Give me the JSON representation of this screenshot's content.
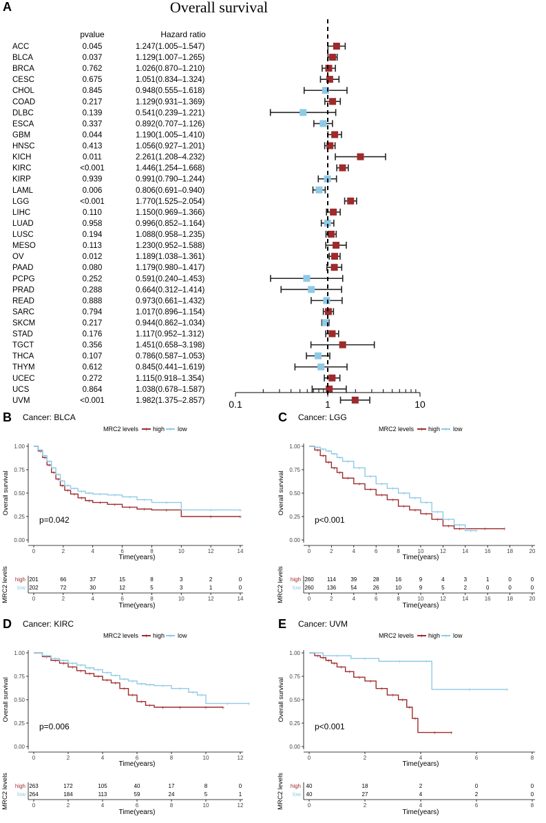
{
  "colors": {
    "high": "#9e2a2b",
    "low": "#8ecae6",
    "axis": "#000000",
    "grid": "#000000"
  },
  "chart_data": [
    {
      "panel": "A",
      "type": "forest",
      "title": "Overall survival",
      "col_pvalue": "pvalue",
      "col_hr": "Hazard ratio",
      "xscale": "log",
      "xticks": [
        0.1,
        1,
        10
      ],
      "xtick_labels": [
        "0.1",
        "1",
        "10"
      ],
      "reference": 1,
      "rows": [
        {
          "name": "ACC",
          "p": "0.045",
          "hr_text": "1.247(1.005–1.547)",
          "hr": 1.247,
          "lo": 1.005,
          "hi": 1.547
        },
        {
          "name": "BLCA",
          "p": "0.037",
          "hr_text": "1.129(1.007–1.265)",
          "hr": 1.129,
          "lo": 1.007,
          "hi": 1.265
        },
        {
          "name": "BRCA",
          "p": "0.762",
          "hr_text": "1.026(0.870–1.210)",
          "hr": 1.026,
          "lo": 0.87,
          "hi": 1.21
        },
        {
          "name": "CESC",
          "p": "0.675",
          "hr_text": "1.051(0.834–1.324)",
          "hr": 1.051,
          "lo": 0.834,
          "hi": 1.324
        },
        {
          "name": "CHOL",
          "p": "0.845",
          "hr_text": "0.948(0.555–1.618)",
          "hr": 0.948,
          "lo": 0.555,
          "hi": 1.618
        },
        {
          "name": "COAD",
          "p": "0.217",
          "hr_text": "1.129(0.931–1.369)",
          "hr": 1.129,
          "lo": 0.931,
          "hi": 1.369
        },
        {
          "name": "DLBC",
          "p": "0.139",
          "hr_text": "0.541(0.239–1.221)",
          "hr": 0.541,
          "lo": 0.239,
          "hi": 1.221
        },
        {
          "name": "ESCA",
          "p": "0.337",
          "hr_text": "0.892(0.707–1.126)",
          "hr": 0.892,
          "lo": 0.707,
          "hi": 1.126
        },
        {
          "name": "GBM",
          "p": "0.044",
          "hr_text": "1.190(1.005–1.410)",
          "hr": 1.19,
          "lo": 1.005,
          "hi": 1.41
        },
        {
          "name": "HNSC",
          "p": "0.413",
          "hr_text": "1.056(0.927–1.201)",
          "hr": 1.056,
          "lo": 0.927,
          "hi": 1.201
        },
        {
          "name": "KICH",
          "p": "0.011",
          "hr_text": "2.261(1.208–4.232)",
          "hr": 2.261,
          "lo": 1.208,
          "hi": 4.232
        },
        {
          "name": "KIRC",
          "p": "<0.001",
          "hr_text": "1.446(1.254–1.668)",
          "hr": 1.446,
          "lo": 1.254,
          "hi": 1.668
        },
        {
          "name": "KIRP",
          "p": "0.939",
          "hr_text": "0.991(0.790–1.244)",
          "hr": 0.991,
          "lo": 0.79,
          "hi": 1.244
        },
        {
          "name": "LAML",
          "p": "0.006",
          "hr_text": "0.806(0.691–0.940)",
          "hr": 0.806,
          "lo": 0.691,
          "hi": 0.94
        },
        {
          "name": "LGG",
          "p": "<0.001",
          "hr_text": "1.770(1.525–2.054)",
          "hr": 1.77,
          "lo": 1.525,
          "hi": 2.054
        },
        {
          "name": "LIHC",
          "p": "0.110",
          "hr_text": "1.150(0.969–1.366)",
          "hr": 1.15,
          "lo": 0.969,
          "hi": 1.366
        },
        {
          "name": "LUAD",
          "p": "0.958",
          "hr_text": "0.996(0.852–1.164)",
          "hr": 0.996,
          "lo": 0.852,
          "hi": 1.164
        },
        {
          "name": "LUSC",
          "p": "0.194",
          "hr_text": "1.088(0.958–1.235)",
          "hr": 1.088,
          "lo": 0.958,
          "hi": 1.235
        },
        {
          "name": "MESO",
          "p": "0.113",
          "hr_text": "1.230(0.952–1.588)",
          "hr": 1.23,
          "lo": 0.952,
          "hi": 1.588
        },
        {
          "name": "OV",
          "p": "0.012",
          "hr_text": "1.189(1.038–1.361)",
          "hr": 1.189,
          "lo": 1.038,
          "hi": 1.361
        },
        {
          "name": "PAAD",
          "p": "0.080",
          "hr_text": "1.179(0.980–1.417)",
          "hr": 1.179,
          "lo": 0.98,
          "hi": 1.417
        },
        {
          "name": "PCPG",
          "p": "0.252",
          "hr_text": "0.591(0.240–1.453)",
          "hr": 0.591,
          "lo": 0.24,
          "hi": 1.453
        },
        {
          "name": "PRAD",
          "p": "0.288",
          "hr_text": "0.664(0.312–1.414)",
          "hr": 0.664,
          "lo": 0.312,
          "hi": 1.414
        },
        {
          "name": "READ",
          "p": "0.888",
          "hr_text": "0.973(0.661–1.432)",
          "hr": 0.973,
          "lo": 0.661,
          "hi": 1.432
        },
        {
          "name": "SARC",
          "p": "0.794",
          "hr_text": "1.017(0.896–1.154)",
          "hr": 1.017,
          "lo": 0.896,
          "hi": 1.154
        },
        {
          "name": "SKCM",
          "p": "0.217",
          "hr_text": "0.944(0.862–1.034)",
          "hr": 0.944,
          "lo": 0.862,
          "hi": 1.034
        },
        {
          "name": "STAD",
          "p": "0.176",
          "hr_text": "1.117(0.952–1.312)",
          "hr": 1.117,
          "lo": 0.952,
          "hi": 1.312
        },
        {
          "name": "TGCT",
          "p": "0.356",
          "hr_text": "1.451(0.658–3.198)",
          "hr": 1.451,
          "lo": 0.658,
          "hi": 3.198
        },
        {
          "name": "THCA",
          "p": "0.107",
          "hr_text": "0.786(0.587–1.053)",
          "hr": 0.786,
          "lo": 0.587,
          "hi": 1.053
        },
        {
          "name": "THYM",
          "p": "0.612",
          "hr_text": "0.845(0.441–1.619)",
          "hr": 0.845,
          "lo": 0.441,
          "hi": 1.619
        },
        {
          "name": "UCEC",
          "p": "0.272",
          "hr_text": "1.115(0.918–1.354)",
          "hr": 1.115,
          "lo": 0.918,
          "hi": 1.354
        },
        {
          "name": "UCS",
          "p": "0.864",
          "hr_text": "1.038(0.678–1.587)",
          "hr": 1.038,
          "lo": 0.678,
          "hi": 1.587
        },
        {
          "name": "UVM",
          "p": "<0.001",
          "hr_text": "1.982(1.375–2.857)",
          "hr": 1.982,
          "lo": 1.375,
          "hi": 2.857
        }
      ]
    },
    {
      "panel": "B",
      "type": "line",
      "subtype": "kaplan-meier",
      "title": "Cancer: BLCA",
      "legend_title": "MRC2 levels",
      "legend_labels": [
        "high",
        "low"
      ],
      "xlabel": "Time(years)",
      "ylabel": "Overall survival",
      "xlim": [
        0,
        14
      ],
      "xticks": [
        0,
        2,
        4,
        6,
        8,
        10,
        12,
        14
      ],
      "ylim": [
        0,
        1
      ],
      "yticks": [
        "0.00",
        "0.25",
        "0.50",
        "0.75",
        "1.00"
      ],
      "pvalue": "p=0.042",
      "series": [
        {
          "name": "high",
          "x": [
            0,
            0.3,
            0.6,
            0.9,
            1.2,
            1.5,
            1.8,
            2.1,
            2.5,
            3,
            3.5,
            4,
            5,
            6,
            7,
            8,
            10,
            14
          ],
          "y": [
            1,
            0.95,
            0.88,
            0.8,
            0.72,
            0.65,
            0.58,
            0.53,
            0.49,
            0.45,
            0.42,
            0.4,
            0.38,
            0.35,
            0.33,
            0.32,
            0.25,
            0.25
          ]
        },
        {
          "name": "low",
          "x": [
            0,
            0.3,
            0.6,
            0.9,
            1.2,
            1.5,
            1.8,
            2.1,
            2.5,
            3,
            3.5,
            4,
            5,
            6,
            7,
            8,
            10,
            14
          ],
          "y": [
            1,
            0.96,
            0.9,
            0.84,
            0.77,
            0.7,
            0.63,
            0.58,
            0.55,
            0.52,
            0.5,
            0.49,
            0.48,
            0.46,
            0.43,
            0.4,
            0.32,
            0.32
          ]
        }
      ],
      "risk_table": {
        "ylabel": "MRC2 levels",
        "rows": [
          {
            "name": "high",
            "counts": [
              "201",
              "66",
              "37",
              "15",
              "8",
              "3",
              "2",
              "0"
            ]
          },
          {
            "name": "low",
            "counts": [
              "202",
              "72",
              "30",
              "12",
              "5",
              "3",
              "1",
              "0"
            ]
          }
        ],
        "xticks": [
          0,
          2,
          4,
          6,
          8,
          10,
          12,
          14
        ]
      }
    },
    {
      "panel": "C",
      "type": "line",
      "subtype": "kaplan-meier",
      "title": "Cancer: LGG",
      "legend_title": "MRC2 levels",
      "legend_labels": [
        "high",
        "low"
      ],
      "xlabel": "Time(years)",
      "ylabel": "Overall survival",
      "xlim": [
        0,
        20
      ],
      "xticks": [
        0,
        2,
        4,
        6,
        8,
        10,
        12,
        14,
        16,
        18,
        20
      ],
      "ylim": [
        0,
        1
      ],
      "yticks": [
        "0.00",
        "0.25",
        "0.50",
        "0.75",
        "1.00"
      ],
      "pvalue": "p<0.001",
      "series": [
        {
          "name": "high",
          "x": [
            0,
            0.5,
            1,
            1.5,
            2,
            2.5,
            3,
            4,
            5,
            6,
            7,
            8,
            9,
            10,
            11,
            12,
            13,
            14,
            17.5
          ],
          "y": [
            1,
            0.96,
            0.9,
            0.83,
            0.77,
            0.72,
            0.66,
            0.6,
            0.54,
            0.48,
            0.43,
            0.36,
            0.32,
            0.28,
            0.22,
            0.15,
            0.12,
            0.12,
            0.12
          ]
        },
        {
          "name": "low",
          "x": [
            0,
            0.5,
            1,
            1.5,
            2,
            2.5,
            3,
            4,
            5,
            6,
            7,
            8,
            9,
            10,
            11,
            12,
            13,
            14,
            15
          ],
          "y": [
            1,
            0.99,
            0.97,
            0.95,
            0.92,
            0.88,
            0.84,
            0.77,
            0.68,
            0.6,
            0.55,
            0.5,
            0.45,
            0.4,
            0.3,
            0.22,
            0.16,
            0.1,
            0.1
          ]
        }
      ],
      "risk_table": {
        "ylabel": "MRC2 levels",
        "rows": [
          {
            "name": "high",
            "counts": [
              "260",
              "114",
              "39",
              "28",
              "16",
              "9",
              "4",
              "3",
              "1",
              "0",
              "0"
            ]
          },
          {
            "name": "low",
            "counts": [
              "260",
              "136",
              "54",
              "26",
              "10",
              "9",
              "5",
              "2",
              "0",
              "0",
              "0"
            ]
          }
        ],
        "xticks": [
          0,
          2,
          4,
          6,
          8,
          10,
          12,
          14,
          16,
          18,
          20
        ]
      }
    },
    {
      "panel": "D",
      "type": "line",
      "subtype": "kaplan-meier",
      "title": "Cancer: KIRC",
      "legend_title": "MRC2 levels",
      "legend_labels": [
        "high",
        "low"
      ],
      "xlabel": "Time(years)",
      "ylabel": "Overall survival",
      "xlim": [
        0,
        12
      ],
      "xticks": [
        0,
        2,
        4,
        6,
        8,
        10,
        12
      ],
      "ylim": [
        0,
        1
      ],
      "yticks": [
        "0.00",
        "0.25",
        "0.50",
        "0.75",
        "1.00"
      ],
      "pvalue": "p=0.006",
      "series": [
        {
          "name": "high",
          "x": [
            0,
            0.5,
            1,
            1.5,
            2,
            2.5,
            3,
            3.5,
            4,
            4.5,
            5,
            5.5,
            6,
            6.5,
            7,
            8,
            9,
            11
          ],
          "y": [
            1,
            0.96,
            0.92,
            0.89,
            0.85,
            0.81,
            0.78,
            0.75,
            0.71,
            0.68,
            0.62,
            0.55,
            0.48,
            0.44,
            0.42,
            0.42,
            0.42,
            0.42
          ]
        },
        {
          "name": "low",
          "x": [
            0,
            0.5,
            1,
            1.5,
            2,
            2.5,
            3,
            3.5,
            4,
            4.5,
            5,
            5.5,
            6,
            6.5,
            7,
            8,
            9,
            9.5,
            10,
            12.5
          ],
          "y": [
            1,
            0.97,
            0.94,
            0.92,
            0.89,
            0.87,
            0.84,
            0.82,
            0.79,
            0.76,
            0.72,
            0.7,
            0.67,
            0.66,
            0.65,
            0.62,
            0.58,
            0.55,
            0.46,
            0.46
          ]
        }
      ],
      "risk_table": {
        "ylabel": "MRC2 levels",
        "rows": [
          {
            "name": "high",
            "counts": [
              "263",
              "172",
              "105",
              "40",
              "17",
              "8",
              "0"
            ]
          },
          {
            "name": "low",
            "counts": [
              "264",
              "184",
              "113",
              "59",
              "24",
              "5",
              "1"
            ]
          }
        ],
        "xticks": [
          0,
          2,
          4,
          6,
          8,
          10,
          12
        ]
      }
    },
    {
      "panel": "E",
      "type": "line",
      "subtype": "kaplan-meier",
      "title": "Cancer: UVM",
      "legend_title": "MRC2 levels",
      "legend_labels": [
        "high",
        "low"
      ],
      "xlabel": "Time(years)",
      "ylabel": "Overall survival",
      "xlim": [
        0,
        8
      ],
      "xticks": [
        0,
        2,
        4,
        6,
        8
      ],
      "ylim": [
        0,
        1
      ],
      "yticks": [
        "0.00",
        "0.25",
        "0.50",
        "0.75",
        "1.00"
      ],
      "pvalue": "p<0.001",
      "series": [
        {
          "name": "high",
          "x": [
            0,
            0.2,
            0.4,
            0.6,
            0.8,
            1,
            1.3,
            1.6,
            2,
            2.4,
            2.8,
            3.2,
            3.5,
            3.7,
            3.9,
            5.1
          ],
          "y": [
            1,
            0.97,
            0.95,
            0.92,
            0.89,
            0.85,
            0.8,
            0.74,
            0.7,
            0.62,
            0.55,
            0.5,
            0.42,
            0.3,
            0.15,
            0.15
          ]
        },
        {
          "name": "low",
          "x": [
            0,
            0.5,
            1.5,
            2.5,
            4,
            4.4,
            7.1
          ],
          "y": [
            1,
            0.97,
            0.94,
            0.91,
            0.91,
            0.61,
            0.61
          ]
        }
      ],
      "risk_table": {
        "ylabel": "MRC2 levels",
        "rows": [
          {
            "name": "high",
            "counts": [
              "40",
              "18",
              "2",
              "0",
              "0"
            ]
          },
          {
            "name": "low",
            "counts": [
              "40",
              "27",
              "4",
              "2",
              "0"
            ]
          }
        ],
        "xticks": [
          0,
          2,
          4,
          6,
          8
        ]
      }
    }
  ]
}
